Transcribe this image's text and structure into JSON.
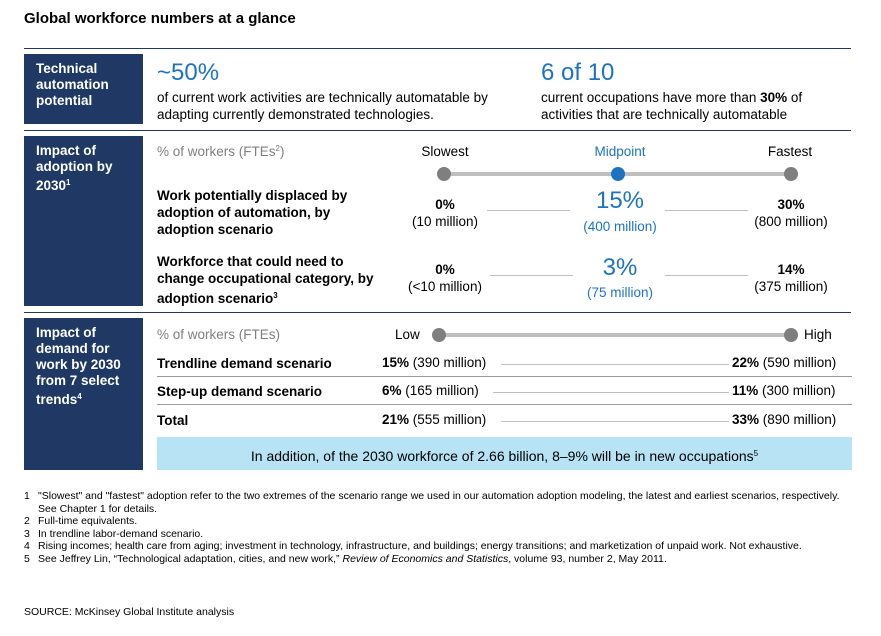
{
  "title": "Global workforce numbers at a glance",
  "section1": {
    "label": "Technical automation potential",
    "stat1": {
      "value": "~50%",
      "text": "of current work activities are technically automatable by adapting currently demonstrated technologies."
    },
    "stat2": {
      "value": "6 of 10",
      "text_before": "current occupations have more than ",
      "text_bold": "30%",
      "text_after": " of activities that are technically automatable"
    }
  },
  "section2": {
    "label": "Impact of adoption by 2030",
    "label_sup": "1",
    "unit_label": "% of workers (FTEs",
    "unit_sup": "2",
    "unit_close": ")",
    "scale": {
      "slowest": "Slowest",
      "midpoint": "Midpoint",
      "fastest": "Fastest"
    },
    "rows": [
      {
        "label": "Work potentially displaced by adoption of automation, by adoption scenario",
        "label_sup": "",
        "slowest_pct": "0%",
        "slowest_abs": "(10 million)",
        "mid_pct": "15%",
        "mid_abs": "(400 million)",
        "fastest_pct": "30%",
        "fastest_abs": "(800 million)"
      },
      {
        "label": "Workforce that could need to change occupational category, by adoption scenario",
        "label_sup": "3",
        "slowest_pct": "0%",
        "slowest_abs": "(<10 million)",
        "mid_pct": "3%",
        "mid_abs": "(75 million)",
        "fastest_pct": "14%",
        "fastest_abs": "(375 million)"
      }
    ]
  },
  "section3": {
    "label": "Impact of demand for work by 2030 from 7 select trends",
    "label_sup": "4",
    "unit_label": "% of workers (FTEs)",
    "scale": {
      "low": "Low",
      "high": "High"
    },
    "rows": [
      {
        "label": "Trendline demand scenario",
        "low_pct": "15%",
        "low_abs": " (390 million)",
        "high_pct": "22%",
        "high_abs": " (590 million)"
      },
      {
        "label": "Step-up demand scenario",
        "low_pct": "6%",
        "low_abs": " (165 million)",
        "high_pct": "11%",
        "high_abs": " (300 million)"
      },
      {
        "label": "Total",
        "low_pct": "21%",
        "low_abs": " (555 million)",
        "high_pct": "33%",
        "high_abs": " (890 million)"
      }
    ],
    "callout": "In addition, of the 2030 workforce of 2.66 billion, 8–9% will be in new occupations",
    "callout_sup": "5"
  },
  "footnotes": [
    {
      "num": "1",
      "text": "\"Slowest\" and \"fastest\" adoption refer to the two extremes of the scenario range we used in our automation adoption modeling, the latest and earliest scenarios, respectively. See Chapter 1 for details."
    },
    {
      "num": "2",
      "text": "Full-time equivalents."
    },
    {
      "num": "3",
      "text": "In trendline labor-demand scenario."
    },
    {
      "num": "4",
      "text": "Rising incomes; health care from aging; investment in technology, infrastructure, and buildings; energy transitions; and marketization of unpaid work. Not exhaustive."
    }
  ],
  "footnote5": {
    "num": "5",
    "before": "See Jeffrey Lin, “Technological adaptation, cities, and new work,” ",
    "italic": "Review of Economics and Statistics",
    "after": ", volume 93, number 2, May 2011."
  },
  "source": "SOURCE: McKinsey Global Institute analysis",
  "colors": {
    "navy": "#1f3864",
    "accent": "#1d73c1",
    "callout": "#b8e3f5"
  }
}
